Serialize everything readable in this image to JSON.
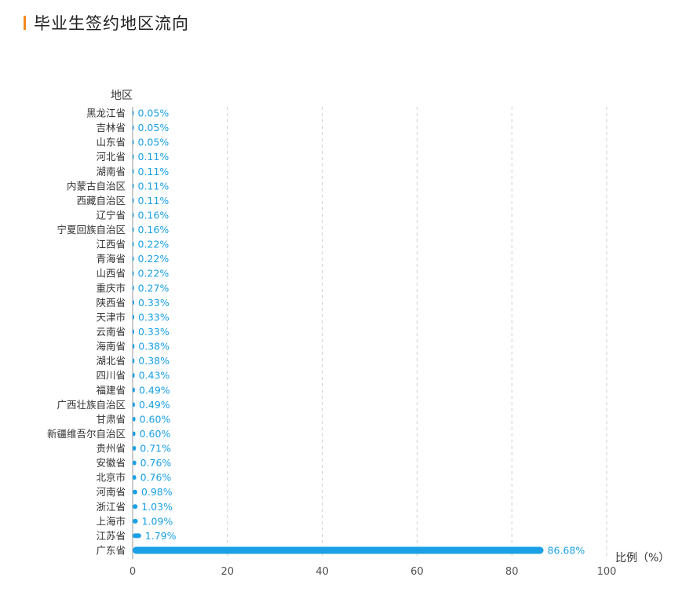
{
  "header": {
    "title": "毕业生签约地区流向",
    "accent_color": "#f28a1e"
  },
  "chart_data": {
    "type": "bar",
    "orientation": "horizontal",
    "title": "毕业生签约地区流向",
    "ylabel": "地区",
    "xlabel": "比例（%）",
    "xlim": [
      0,
      100
    ],
    "xticks": [
      0,
      20,
      40,
      60,
      80,
      100
    ],
    "grid": true,
    "bar_color": "#1aa0e6",
    "categories": [
      "黑龙江省",
      "吉林省",
      "山东省",
      "河北省",
      "湖南省",
      "内蒙古自治区",
      "西藏自治区",
      "辽宁省",
      "宁夏回族自治区",
      "江西省",
      "青海省",
      "山西省",
      "重庆市",
      "陕西省",
      "天津市",
      "云南省",
      "海南省",
      "湖北省",
      "四川省",
      "福建省",
      "广西壮族自治区",
      "甘肃省",
      "新疆维吾尔自治区",
      "贵州省",
      "安徽省",
      "北京市",
      "河南省",
      "浙江省",
      "上海市",
      "江苏省",
      "广东省"
    ],
    "values": [
      0.05,
      0.05,
      0.05,
      0.11,
      0.11,
      0.11,
      0.11,
      0.16,
      0.16,
      0.22,
      0.22,
      0.22,
      0.27,
      0.33,
      0.33,
      0.33,
      0.38,
      0.38,
      0.43,
      0.49,
      0.49,
      0.6,
      0.6,
      0.71,
      0.76,
      0.76,
      0.98,
      1.03,
      1.09,
      1.79,
      86.68
    ],
    "value_labels": [
      "0.05%",
      "0.05%",
      "0.05%",
      "0.11%",
      "0.11%",
      "0.11%",
      "0.11%",
      "0.16%",
      "0.16%",
      "0.22%",
      "0.22%",
      "0.22%",
      "0.27%",
      "0.33%",
      "0.33%",
      "0.33%",
      "0.38%",
      "0.38%",
      "0.43%",
      "0.49%",
      "0.49%",
      "0.60%",
      "0.60%",
      "0.71%",
      "0.76%",
      "0.76%",
      "0.98%",
      "1.03%",
      "1.09%",
      "1.79%",
      "86.68%"
    ]
  }
}
